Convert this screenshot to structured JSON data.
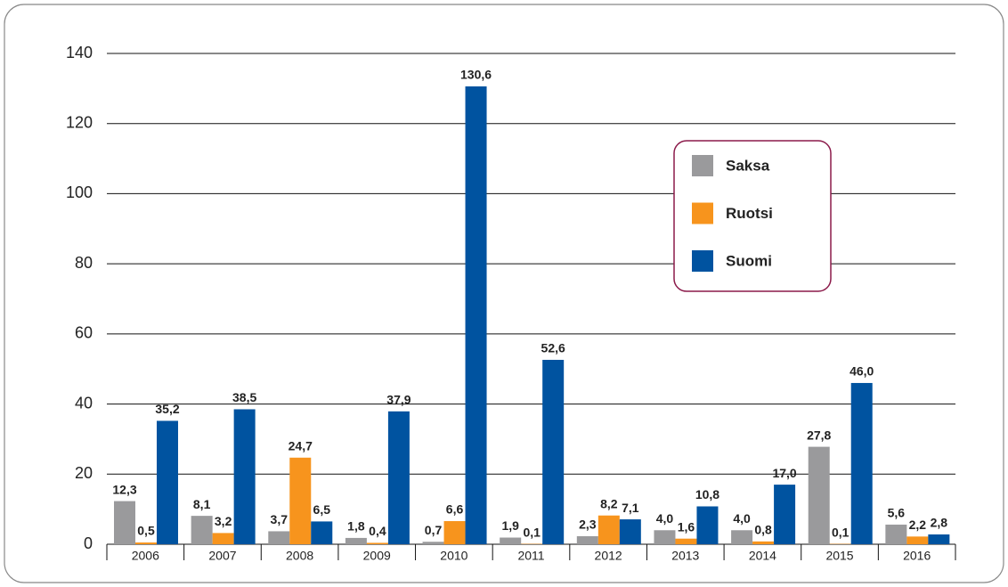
{
  "chart_data": {
    "type": "bar",
    "categories": [
      "2006",
      "2007",
      "2008",
      "2009",
      "2010",
      "2011",
      "2012",
      "2013",
      "2014",
      "2015",
      "2016"
    ],
    "series": [
      {
        "name": "Saksa",
        "color": "#9a9a9c",
        "values": [
          12.3,
          8.1,
          3.7,
          1.8,
          0.7,
          1.9,
          2.3,
          4.0,
          4.0,
          27.8,
          5.6
        ],
        "value_labels": [
          "12,3",
          "8,1",
          "3,7",
          "1,8",
          "0,7",
          "1,9",
          "2,3",
          "4,0",
          "4,0",
          "27,8",
          "5,6"
        ]
      },
      {
        "name": "Ruotsi",
        "color": "#f7941d",
        "values": [
          0.5,
          3.2,
          24.7,
          0.4,
          6.6,
          0.1,
          8.2,
          1.6,
          0.8,
          0.1,
          2.2
        ],
        "value_labels": [
          "0,5",
          "3,2",
          "24,7",
          "0,4",
          "6,6",
          "0,1",
          "8,2",
          "1,6",
          "0,8",
          "0,1",
          "2,2"
        ]
      },
      {
        "name": "Suomi",
        "color": "#0053a0",
        "values": [
          35.2,
          38.5,
          6.5,
          37.9,
          130.6,
          52.6,
          7.1,
          10.8,
          17.0,
          46.0,
          2.8
        ],
        "value_labels": [
          "35,2",
          "38,5",
          "6,5",
          "37,9",
          "130,6",
          "52,6",
          "7,1",
          "10,8",
          "17,0",
          "46,0",
          "2,8"
        ]
      }
    ],
    "ylim": [
      0,
      140
    ],
    "yticks": [
      0,
      20,
      40,
      60,
      80,
      100,
      120,
      140
    ],
    "grid": true,
    "legend": "upper-right"
  }
}
